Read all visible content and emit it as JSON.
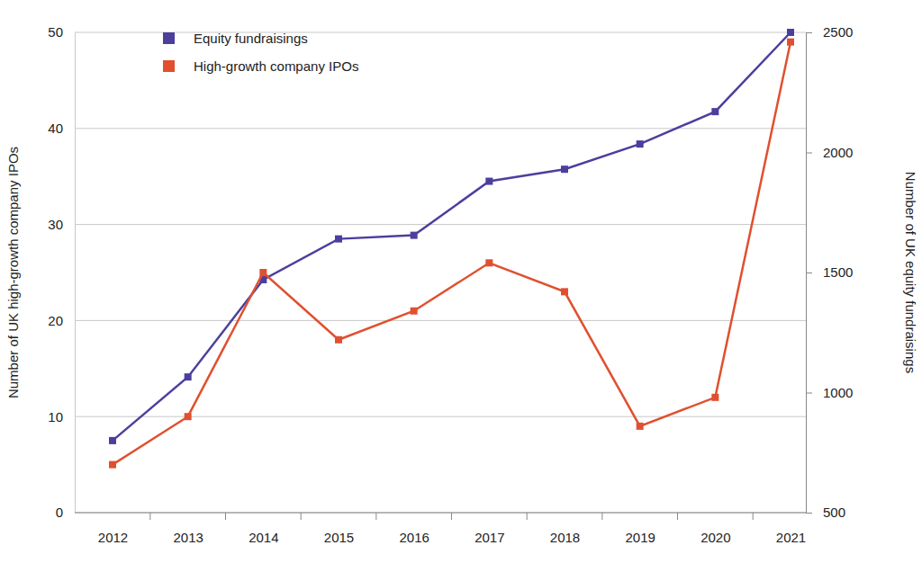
{
  "chart_data": {
    "type": "line",
    "categories": [
      "2012",
      "2013",
      "2014",
      "2015",
      "2016",
      "2017",
      "2018",
      "2019",
      "2020",
      "2021"
    ],
    "series": [
      {
        "name": "Equity fundraisings",
        "color": "#4b3f9e",
        "marker": "square",
        "axis": "y2",
        "values": [
          800,
          1065,
          1470,
          1640,
          1655,
          1880,
          1930,
          2035,
          2170,
          2500
        ]
      },
      {
        "name": "High-growth company IPOs",
        "color": "#e0502f",
        "marker": "square",
        "values": [
          5,
          10,
          25,
          18,
          21,
          26,
          23,
          9,
          12,
          49
        ]
      }
    ],
    "y_label": "Number of UK high-growth company IPOs",
    "y2_label": "Number of UK equity fundraisings",
    "ylim": [
      0,
      50
    ],
    "yticks": [
      0,
      10,
      20,
      30,
      40,
      50
    ],
    "y2lim": [
      500,
      2500
    ],
    "y2ticks": [
      500,
      1000,
      1500,
      2000,
      2500
    ],
    "grid": true,
    "legend": "upper left"
  }
}
